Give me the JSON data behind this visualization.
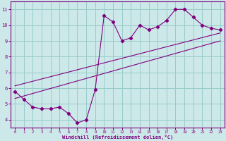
{
  "xlabel": "Windchill (Refroidissement éolien,°C)",
  "xlim": [
    -0.5,
    23.5
  ],
  "ylim": [
    3.5,
    11.5
  ],
  "xticks": [
    0,
    1,
    2,
    3,
    4,
    5,
    6,
    7,
    8,
    9,
    10,
    11,
    12,
    13,
    14,
    15,
    16,
    17,
    18,
    19,
    20,
    21,
    22,
    23
  ],
  "yticks": [
    4,
    5,
    6,
    7,
    8,
    9,
    10,
    11
  ],
  "bg_color": "#cce8e8",
  "line_color": "#800080",
  "grid_color": "#99cccc",
  "main_line_x": [
    0,
    1,
    2,
    3,
    4,
    5,
    6,
    7,
    8,
    9,
    10,
    11,
    12,
    13,
    14,
    15,
    16,
    17,
    18,
    19,
    20,
    21,
    22,
    23
  ],
  "main_line_y": [
    5.8,
    5.3,
    4.8,
    4.7,
    4.7,
    4.8,
    4.4,
    3.8,
    4.0,
    5.9,
    10.6,
    10.2,
    9.0,
    9.2,
    10.0,
    9.7,
    9.9,
    10.3,
    11.0,
    11.0,
    10.5,
    10.0,
    9.8,
    9.7
  ],
  "upper_line_x": [
    0,
    23
  ],
  "upper_line_y": [
    6.15,
    9.5
  ],
  "lower_line_x": [
    0,
    23
  ],
  "lower_line_y": [
    5.35,
    9.0
  ],
  "marker": "D",
  "marker_size": 2.2,
  "line_width": 0.8
}
